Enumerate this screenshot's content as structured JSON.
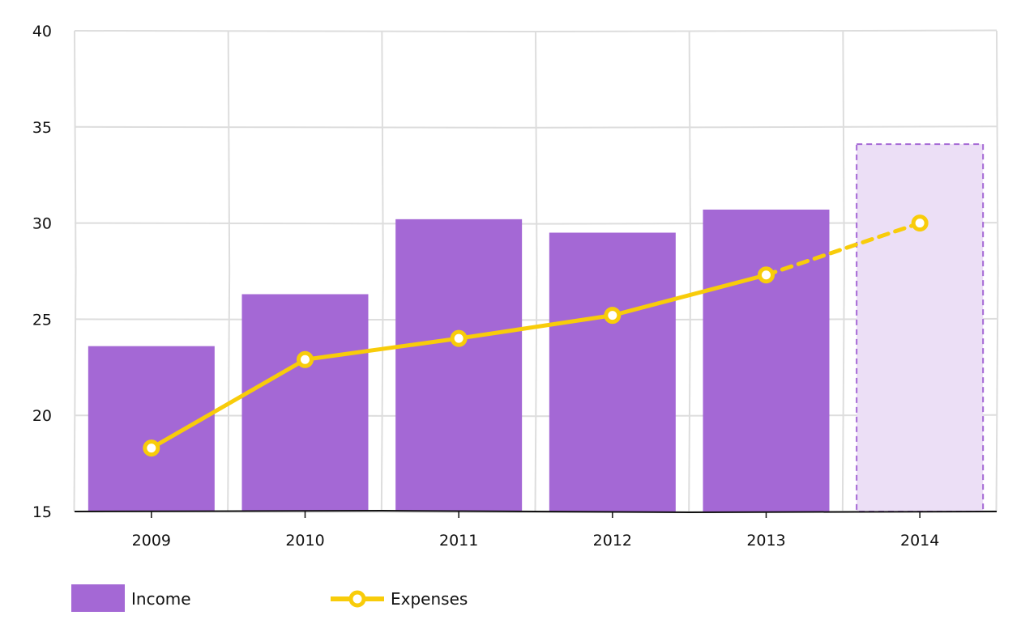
{
  "chart_data": {
    "type": "bar",
    "categories": [
      "2009",
      "2010",
      "2011",
      "2012",
      "2013",
      "2014"
    ],
    "series": [
      {
        "name": "Income",
        "kind": "bar",
        "values": [
          23.6,
          26.3,
          30.2,
          29.5,
          30.7,
          34.1
        ],
        "projected": [
          false,
          false,
          false,
          false,
          false,
          true
        ],
        "color": "#a468d5",
        "projected_color": "#ecdff6"
      },
      {
        "name": "Expenses",
        "kind": "line",
        "values": [
          18.3,
          22.9,
          24.0,
          25.2,
          27.3,
          30.0
        ],
        "projected": [
          false,
          false,
          false,
          false,
          false,
          true
        ],
        "color": "#f8cc0a"
      }
    ],
    "ylim": [
      15,
      40
    ],
    "y_ticks": [
      "15",
      "20",
      "25",
      "30",
      "35",
      "40"
    ],
    "grid": true,
    "legend_position": "bottom-left",
    "style": "hand-drawn"
  }
}
